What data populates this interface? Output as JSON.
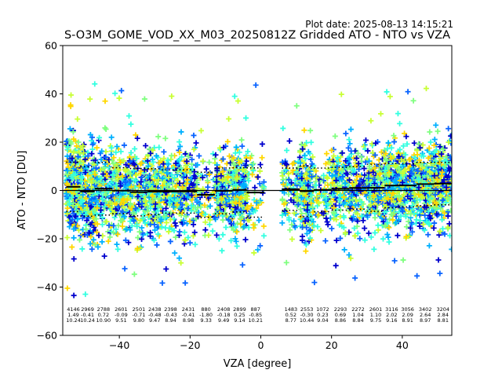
{
  "header": {
    "plot_date": "Plot date: 2025-08-13 14:15:21",
    "title": "S-O3M_GOME_VOD_XX_M03_20250812Z Gridded ATO - NTO vs VZA"
  },
  "chart_data": {
    "type": "scatter",
    "xlabel": "VZA [degree]",
    "ylabel": "ATO - NTO [DU]",
    "xlim": [
      -56,
      54
    ],
    "ylim": [
      -60,
      60
    ],
    "xticks": [
      -40,
      -20,
      0,
      20,
      40
    ],
    "yticks": [
      -60,
      -40,
      -20,
      0,
      20,
      40,
      60
    ],
    "grid": false,
    "marker": "+",
    "point_colors": [
      "#0000cd",
      "#0a64ff",
      "#00b0ff",
      "#33ffe0",
      "#80ff80",
      "#c8ff33",
      "#ffd700"
    ],
    "bins": [
      {
        "x0": -55,
        "x1": -51,
        "count": "4146",
        "mean": "1.49",
        "std": "10.24"
      },
      {
        "x0": -51,
        "x1": -47,
        "count": "2969",
        "mean": "-0.41",
        "std": "10.24"
      },
      {
        "x0": -47,
        "x1": -42,
        "count": "2788",
        "mean": "0.72",
        "std": "10.90"
      },
      {
        "x0": -42,
        "x1": -37,
        "count": "2601",
        "mean": "-0.09",
        "std": "9.51"
      },
      {
        "x0": -37,
        "x1": -32,
        "count": "2501",
        "mean": "-0.71",
        "std": "9.80"
      },
      {
        "x0": -32,
        "x1": -28,
        "count": "2438",
        "mean": "-0.48",
        "std": "9.47"
      },
      {
        "x0": -28,
        "x1": -23,
        "count": "2398",
        "mean": "-0.43",
        "std": "8.94"
      },
      {
        "x0": -23,
        "x1": -18,
        "count": "2431",
        "mean": "-0.41",
        "std": "8.98"
      },
      {
        "x0": -18,
        "x1": -13,
        "count": "880",
        "mean": "-1.80",
        "std": "9.33"
      },
      {
        "x0": -13,
        "x1": -8,
        "count": "2408",
        "mean": "-0.18",
        "std": "9.49"
      },
      {
        "x0": -8,
        "x1": -4,
        "count": "2899",
        "mean": "0.25",
        "std": "9.14"
      },
      {
        "x0": -4,
        "x1": 1,
        "count": "887",
        "mean": "-0.85",
        "std": "10.21"
      },
      {
        "x0": 6,
        "x1": 11,
        "count": "1483",
        "mean": "0.52",
        "std": "8.77"
      },
      {
        "x0": 11,
        "x1": 15,
        "count": "2553",
        "mean": "-0.30",
        "std": "10.44"
      },
      {
        "x0": 15,
        "x1": 20,
        "count": "1072",
        "mean": "0.23",
        "std": "9.04"
      },
      {
        "x0": 20,
        "x1": 25,
        "count": "2293",
        "mean": "0.69",
        "std": "8.86"
      },
      {
        "x0": 25,
        "x1": 30,
        "count": "2272",
        "mean": "1.04",
        "std": "8.84"
      },
      {
        "x0": 30,
        "x1": 35,
        "count": "2601",
        "mean": "1.10",
        "std": "9.75"
      },
      {
        "x0": 35,
        "x1": 39,
        "count": "3116",
        "mean": "2.02",
        "std": "9.16"
      },
      {
        "x0": 39,
        "x1": 44,
        "count": "3056",
        "mean": "2.09",
        "std": "8.91"
      },
      {
        "x0": 44,
        "x1": 49,
        "count": "3402",
        "mean": "2.64",
        "std": "8.97"
      },
      {
        "x0": 49,
        "x1": 54,
        "count": "3204",
        "mean": "2.84",
        "std": "8.81"
      }
    ],
    "mean_line": {
      "style": "solid",
      "color": "#000000"
    },
    "std_lines": {
      "style": "dotted",
      "color": "#000000"
    },
    "zero_line": {
      "style": "solid",
      "color": "#000000"
    }
  }
}
